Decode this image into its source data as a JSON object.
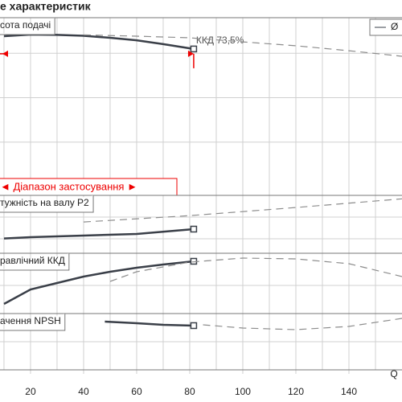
{
  "chart_data": [
    {
      "type": "line",
      "title": "е характеристик",
      "label": "сота подачі",
      "annotation": "ККД  73,5%",
      "range_label": "◄ Діапазон застосування ►",
      "ylim": [
        0,
        100
      ],
      "ygrid": [
        30,
        55,
        80
      ],
      "series": [
        {
          "name": "Ø",
          "color": "#3a3f48",
          "style": "solid",
          "x": [
            10,
            20,
            30,
            40,
            50,
            60,
            70,
            81.5
          ],
          "values": [
            89.6,
            90.5,
            90.3,
            89.8,
            88.7,
            87.3,
            85.1,
            82.4
          ]
        },
        {
          "color": "#8c8c8c",
          "style": "dashed",
          "x": [
            40,
            60,
            80,
            100,
            120,
            140,
            160
          ],
          "values": [
            90.3,
            89.6,
            88.7,
            86.4,
            84.2,
            81.4,
            78.3
          ]
        }
      ]
    },
    {
      "type": "line",
      "label": "тужність на валу P2",
      "ylim": [
        0,
        100
      ],
      "ygrid": [
        25,
        62.5
      ],
      "series": [
        {
          "color": "#3a3f48",
          "style": "solid",
          "x": [
            10,
            20,
            40,
            60,
            81.5
          ],
          "values": [
            25.5,
            27.8,
            30.6,
            33.3,
            41.7
          ]
        },
        {
          "color": "#8c8c8c",
          "style": "dashed",
          "x": [
            40,
            80,
            120,
            160
          ],
          "values": [
            54,
            65,
            79,
            94
          ]
        }
      ]
    },
    {
      "type": "line",
      "label": "равлічний ККД",
      "ylim": [
        0,
        100
      ],
      "ygrid": [
        46.7
      ],
      "series": [
        {
          "color": "#3a3f48",
          "style": "solid",
          "x": [
            10,
            20,
            30,
            40,
            50,
            60,
            70,
            81.5
          ],
          "values": [
            16,
            40,
            50.7,
            61.3,
            69.3,
            76,
            81.3,
            86.7
          ]
        },
        {
          "color": "#8c8c8c",
          "style": "dashed",
          "x": [
            50,
            60,
            80,
            100,
            120,
            140,
            160
          ],
          "values": [
            53.3,
            69.3,
            85.3,
            92,
            90.7,
            82.7,
            61.3
          ]
        }
      ]
    },
    {
      "type": "line",
      "label": "ачення NPSH",
      "ylim": [
        0,
        100
      ],
      "ygrid": [
        50
      ],
      "xlim": [
        8.5,
        160
      ],
      "xticks": [
        20,
        40,
        60,
        80,
        100,
        120,
        140
      ],
      "xgrid": [
        10,
        30,
        50,
        70,
        90,
        110,
        130,
        150
      ],
      "xlabel": "Q",
      "series": [
        {
          "color": "#3a3f48",
          "style": "solid",
          "x": [
            48,
            60,
            70,
            81.5
          ],
          "values": [
            85.7,
            82.9,
            80,
            78.6
          ]
        },
        {
          "color": "#8c8c8c",
          "style": "dashed",
          "x": [
            85,
            100,
            120,
            140,
            160
          ],
          "values": [
            80,
            74.3,
            71.4,
            77.1,
            91.4
          ]
        }
      ]
    }
  ]
}
